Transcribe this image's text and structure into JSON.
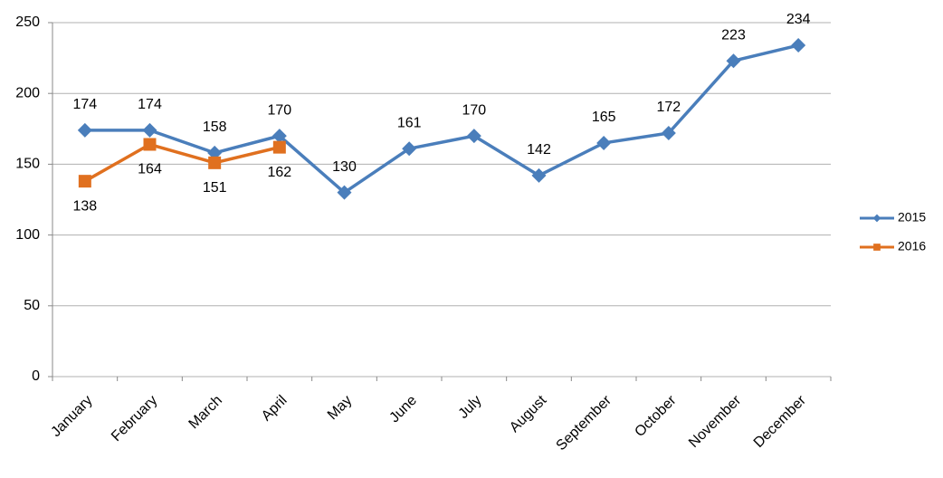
{
  "chart_data": {
    "type": "line",
    "categories": [
      "January",
      "February",
      "March",
      "April",
      "May",
      "June",
      "July",
      "August",
      "September",
      "October",
      "November",
      "December"
    ],
    "series": [
      {
        "name": "2015",
        "color": "#4a7ebb",
        "marker": "diamond",
        "values": [
          174,
          174,
          158,
          170,
          130,
          161,
          170,
          142,
          165,
          172,
          223,
          234
        ]
      },
      {
        "name": "2016",
        "color": "#e0701f",
        "marker": "square",
        "values": [
          138,
          164,
          151,
          162,
          null,
          null,
          null,
          null,
          null,
          null,
          null,
          null
        ]
      }
    ],
    "ylim": [
      0,
      250
    ],
    "yticks": [
      0,
      50,
      100,
      150,
      200,
      250
    ],
    "grid": true,
    "legend": "right"
  }
}
